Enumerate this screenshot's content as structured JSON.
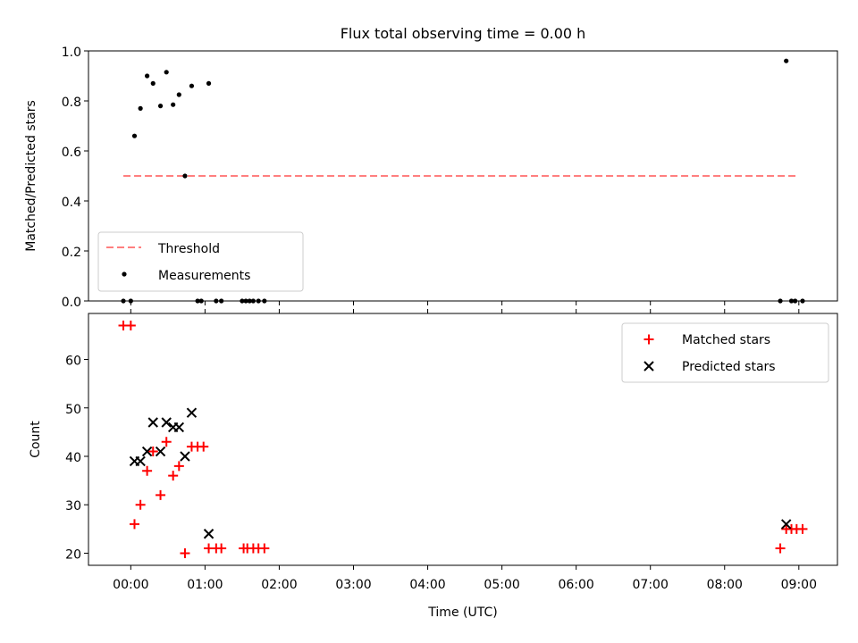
{
  "chart_data": [
    {
      "type": "scatter",
      "title": "Flux total observing time = 0.00 h",
      "xlabel": "",
      "ylabel": "Matched/Predicted stars",
      "x_unit": "hours (UTC)",
      "xlim": [
        -0.57,
        9.52
      ],
      "ylim": [
        0.0,
        1.0
      ],
      "yticks": [
        "0.0",
        "0.2",
        "0.4",
        "0.6",
        "0.8",
        "1.0"
      ],
      "legend_position": "lower-left",
      "series": [
        {
          "name": "Threshold",
          "kind": "dashed-line",
          "color": "#ff7f7f",
          "x": [
            -0.1,
            9.0
          ],
          "y": [
            0.5,
            0.5
          ]
        },
        {
          "name": "Measurements",
          "kind": "dot",
          "color": "#000000",
          "x": [
            -0.1,
            0.0,
            0.05,
            0.13,
            0.22,
            0.3,
            0.4,
            0.48,
            0.57,
            0.65,
            0.73,
            0.82,
            0.9,
            0.95,
            1.05,
            1.15,
            1.22,
            1.5,
            1.55,
            1.6,
            1.65,
            1.72,
            1.8,
            8.75,
            8.83,
            8.9,
            8.95,
            9.05
          ],
          "y": [
            0.0,
            0.0,
            0.66,
            0.77,
            0.9,
            0.87,
            0.78,
            0.915,
            0.785,
            0.825,
            0.5,
            0.86,
            0.0,
            0.0,
            0.87,
            0.0,
            0.0,
            0.0,
            0.0,
            0.0,
            0.0,
            0.0,
            0.0,
            0.0,
            0.96,
            0.0,
            0.0,
            0.0
          ]
        }
      ]
    },
    {
      "type": "scatter",
      "title": "",
      "xlabel": "Time (UTC)",
      "ylabel": "Count",
      "x_unit": "hours (UTC)",
      "xlim": [
        -0.57,
        9.52
      ],
      "ylim": [
        17.5,
        69.5
      ],
      "yticks": [
        "20",
        "30",
        "40",
        "50",
        "60"
      ],
      "xticks": [
        "00:00",
        "01:00",
        "02:00",
        "03:00",
        "04:00",
        "05:00",
        "06:00",
        "07:00",
        "08:00",
        "09:00"
      ],
      "legend_position": "upper-right",
      "series": [
        {
          "name": "Matched stars",
          "marker": "plus",
          "color": "#ff0000",
          "x": [
            -0.1,
            0.0,
            0.05,
            0.13,
            0.22,
            0.3,
            0.4,
            0.48,
            0.57,
            0.65,
            0.73,
            0.82,
            0.9,
            0.98,
            1.05,
            1.15,
            1.22,
            1.52,
            1.57,
            1.65,
            1.72,
            1.8,
            8.75,
            8.83,
            8.9,
            8.97,
            9.05
          ],
          "y": [
            67,
            67,
            26,
            30,
            37,
            41,
            32,
            43,
            36,
            38,
            20,
            42,
            42,
            42,
            21,
            21,
            21,
            21,
            21,
            21,
            21,
            21,
            21,
            25,
            25,
            25,
            25
          ]
        },
        {
          "name": "Predicted stars",
          "marker": "x",
          "color": "#000000",
          "x": [
            0.05,
            0.13,
            0.22,
            0.3,
            0.4,
            0.48,
            0.57,
            0.65,
            0.73,
            0.82,
            1.05,
            8.83
          ],
          "y": [
            39,
            39,
            41,
            47,
            41,
            47,
            46,
            46,
            40,
            49,
            24,
            26
          ]
        }
      ]
    }
  ]
}
